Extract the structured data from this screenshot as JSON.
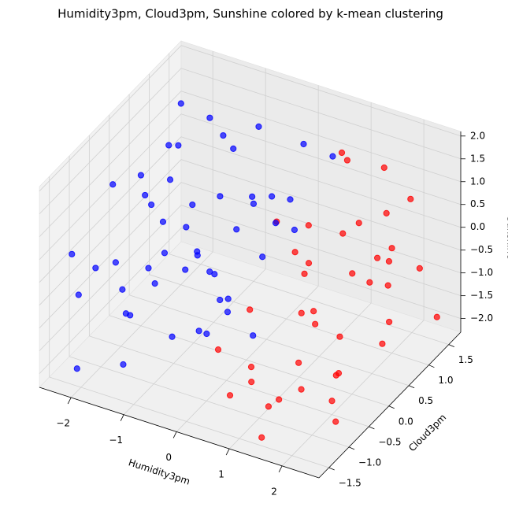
{
  "chart_data": {
    "type": "scatter3d",
    "title": "Humidity3pm, Cloud3pm, Sunshine colored by k-mean clustering",
    "xlabel": "Humidity3pm",
    "ylabel": "Cloud3pm",
    "zlabel": "Sunshine",
    "xlim": [
      -2.6,
      2.7
    ],
    "ylim": [
      -1.75,
      1.8
    ],
    "zlim": [
      -2.3,
      2.1
    ],
    "xticks": [
      {
        "value": -2,
        "label": "−2"
      },
      {
        "value": -1,
        "label": "−1"
      },
      0,
      1,
      2
    ],
    "yticks": [
      {
        "value": -1.5,
        "label": "−1.5"
      },
      {
        "value": -1,
        "label": "−1.0"
      },
      {
        "value": -0.5,
        "label": "−0.5"
      },
      {
        "value": 0,
        "label": "0.0"
      },
      {
        "value": 0.5,
        "label": "0.5"
      },
      {
        "value": 1,
        "label": "1.0"
      },
      {
        "value": 1.5,
        "label": "1.5"
      }
    ],
    "zticks": [
      {
        "value": -2,
        "label": "−2.0"
      },
      {
        "value": -1.5,
        "label": "−1.5"
      },
      {
        "value": -1,
        "label": "−1.0"
      },
      {
        "value": -0.5,
        "label": "−0.5"
      },
      {
        "value": 0,
        "label": "0.0"
      },
      {
        "value": 0.5,
        "label": "0.5"
      },
      {
        "value": 1,
        "label": "1.0"
      },
      {
        "value": 1.5,
        "label": "1.5"
      },
      {
        "value": 2,
        "label": "2.0"
      }
    ],
    "grid": true,
    "series": [
      {
        "color": "#ff0000",
        "x": [
          0.6,
          0.7,
          0.8,
          0.9,
          1.0,
          1.1,
          1.2,
          1.3,
          1.4,
          1.5,
          1.6,
          1.7,
          1.8,
          1.9,
          2.0,
          2.1,
          2.2,
          2.3,
          2.4,
          2.5,
          0.5,
          0.7,
          0.9,
          1.1,
          1.3,
          1.5,
          1.7,
          1.9,
          2.1,
          2.3,
          2.6,
          1.0,
          1.2,
          1.4,
          1.6,
          1.8,
          2.0,
          2.2,
          2.4,
          0.8
        ],
        "y": [
          -1.5,
          -0.8,
          0.5,
          1.2,
          -1.2,
          0.0,
          1.5,
          -0.5,
          0.8,
          -1.6,
          0.3,
          1.3,
          -1.0,
          -0.2,
          1.0,
          -1.4,
          0.6,
          -0.7,
          1.6,
          0.1,
          0.9,
          1.6,
          -1.6,
          -0.9,
          1.1,
          -0.3,
          0.0,
          1.6,
          0.8,
          1.3,
          -1.2,
          0.4,
          -1.5,
          1.6,
          -1.3,
          0.9,
          -0.5,
          -1.6,
          0.4,
          -0.3
        ],
        "z": [
          -0.5,
          -1.8,
          0.5,
          1.5,
          -1.0,
          0.0,
          -1.5,
          1.0,
          -0.6,
          -2.0,
          0.8,
          -1.2,
          0.3,
          -1.7,
          0.0,
          -0.9,
          1.2,
          -0.3,
          -1.9,
          -1.1,
          -0.8,
          0.9,
          -1.3,
          -2.1,
          0.2,
          -0.4,
          -2.0,
          0.5,
          -1.4,
          -0.6,
          -1.6,
          -1.5,
          0.6,
          1.0,
          -1.4,
          -0.2,
          -2.0,
          -0.1,
          0.4,
          1.3
        ]
      },
      {
        "color": "#0000ff",
        "x": [
          -2.4,
          -2.3,
          -2.2,
          -2.1,
          -2.0,
          -1.9,
          -1.8,
          -1.7,
          -1.6,
          -1.5,
          -1.4,
          -1.3,
          -1.2,
          -1.1,
          -1.0,
          -0.9,
          -0.8,
          -0.7,
          -0.6,
          -0.5,
          -0.4,
          -0.3,
          -0.2,
          -0.1,
          0.0,
          0.1,
          0.2,
          0.3,
          0.4,
          0.5,
          -2.5,
          -2.3,
          -2.0,
          -1.7,
          -1.4,
          -1.1,
          -0.8,
          -0.5,
          -0.2,
          0.1,
          -1.9,
          -1.5,
          -1.0,
          -0.6,
          -0.3,
          0.2,
          -2.2,
          -1.3,
          -0.9,
          0.0
        ],
        "y": [
          -1.2,
          0.5,
          1.2,
          -0.5,
          0.0,
          1.0,
          -1.4,
          0.3,
          -0.8,
          1.4,
          -0.2,
          0.8,
          -1.5,
          0.1,
          1.5,
          -0.9,
          0.6,
          -0.3,
          1.1,
          -1.2,
          0.2,
          -0.6,
          0.9,
          -1.4,
          0.4,
          1.3,
          -0.1,
          0.7,
          -1.0,
          1.5,
          -0.9,
          1.4,
          -1.6,
          -1.1,
          1.6,
          -1.0,
          1.2,
          0.0,
          -0.4,
          0.6,
          0.6,
          -0.4,
          0.4,
          -1.5,
          1.6,
          -1.5,
          -0.2,
          -1.3,
          0.0,
          -0.8
        ],
        "z": [
          0.2,
          0.0,
          0.5,
          -0.5,
          1.0,
          -1.0,
          0.3,
          1.5,
          -1.2,
          0.8,
          -0.3,
          1.8,
          -1.5,
          0.6,
          -0.6,
          1.2,
          -1.8,
          0.0,
          1.6,
          -0.9,
          2.0,
          -1.3,
          0.4,
          0.9,
          -0.4,
          1.3,
          -1.6,
          0.7,
          -0.2,
          1.0,
          -1.0,
          1.2,
          -1.8,
          1.9,
          -1.4,
          0.2,
          -0.1,
          1.1,
          -0.7,
          0.2,
          0.4,
          0.9,
          -1.1,
          0.5,
          -1.0,
          1.5,
          -1.4,
          -0.6,
          -2.0,
          0.3
        ]
      }
    ]
  }
}
